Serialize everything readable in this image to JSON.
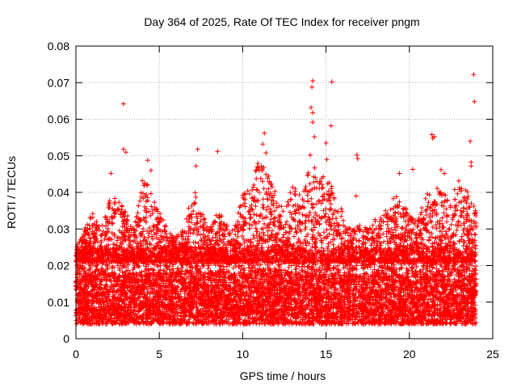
{
  "chart_data": {
    "type": "scatter",
    "title": "Day 364 of 2025, Rate Of TEC Index for receiver pngm",
    "xlabel": "GPS time / hours",
    "ylabel": "ROTI / TECUs",
    "xlim": [
      0,
      25
    ],
    "ylim": [
      0,
      0.08
    ],
    "x_ticks": [
      0,
      5,
      10,
      15,
      20,
      25
    ],
    "y_ticks": [
      0,
      0.01,
      0.02,
      0.03,
      0.04,
      0.05,
      0.06,
      0.07,
      0.08
    ],
    "x_tick_labels": [
      "0",
      "5",
      "10",
      "15",
      "20",
      "25"
    ],
    "y_tick_labels": [
      "0",
      "0.01",
      "0.02",
      "0.03",
      "0.04",
      "0.05",
      "0.06",
      "0.07",
      "0.08"
    ],
    "grid": true,
    "marker": "+",
    "marker_color": "#ff0000",
    "series": [
      {
        "name": "ROTI",
        "x_range": [
          0,
          24
        ],
        "dense_band": [
          0.004,
          0.025
        ],
        "typical": 0.012,
        "envelope": {
          "x": [
            0,
            0.5,
            1,
            1.5,
            2,
            2.5,
            3,
            3.5,
            4,
            4.5,
            5,
            5.5,
            6,
            6.5,
            7,
            7.5,
            8,
            8.5,
            9,
            9.5,
            10,
            10.5,
            11,
            11.5,
            12,
            12.5,
            13,
            13.5,
            14,
            14.5,
            15,
            15.5,
            16,
            16.5,
            17,
            17.5,
            18,
            18.5,
            19,
            19.5,
            20,
            20.5,
            21,
            21.5,
            22,
            22.5,
            23,
            23.5,
            24
          ],
          "y": [
            0.025,
            0.03,
            0.035,
            0.03,
            0.038,
            0.04,
            0.035,
            0.03,
            0.045,
            0.04,
            0.035,
            0.03,
            0.028,
            0.03,
            0.042,
            0.035,
            0.03,
            0.035,
            0.032,
            0.03,
            0.04,
            0.042,
            0.05,
            0.045,
            0.04,
            0.035,
            0.042,
            0.04,
            0.05,
            0.045,
            0.048,
            0.04,
            0.035,
            0.03,
            0.032,
            0.03,
            0.033,
            0.035,
            0.04,
            0.038,
            0.034,
            0.032,
            0.04,
            0.042,
            0.04,
            0.038,
            0.045,
            0.04,
            0.035
          ]
        },
        "peaks": [
          {
            "x": 2.85,
            "y": 0.0642
          },
          {
            "x": 2.85,
            "y": 0.0518
          },
          {
            "x": 3.0,
            "y": 0.051
          },
          {
            "x": 2.1,
            "y": 0.0452
          },
          {
            "x": 4.3,
            "y": 0.0488
          },
          {
            "x": 4.5,
            "y": 0.046
          },
          {
            "x": 7.3,
            "y": 0.0518
          },
          {
            "x": 7.2,
            "y": 0.0472
          },
          {
            "x": 8.5,
            "y": 0.0512
          },
          {
            "x": 11.3,
            "y": 0.0562
          },
          {
            "x": 11.2,
            "y": 0.0532
          },
          {
            "x": 11.4,
            "y": 0.0508
          },
          {
            "x": 14.2,
            "y": 0.0705
          },
          {
            "x": 14.15,
            "y": 0.0688
          },
          {
            "x": 14.1,
            "y": 0.0632
          },
          {
            "x": 14.2,
            "y": 0.0618
          },
          {
            "x": 14.2,
            "y": 0.0592
          },
          {
            "x": 14.05,
            "y": 0.0502
          },
          {
            "x": 14.3,
            "y": 0.0552
          },
          {
            "x": 15.35,
            "y": 0.0702
          },
          {
            "x": 15.3,
            "y": 0.0582
          },
          {
            "x": 15.0,
            "y": 0.0535
          },
          {
            "x": 15.05,
            "y": 0.049
          },
          {
            "x": 16.85,
            "y": 0.0502
          },
          {
            "x": 16.9,
            "y": 0.0492
          },
          {
            "x": 16.8,
            "y": 0.039
          },
          {
            "x": 19.4,
            "y": 0.0452
          },
          {
            "x": 20.2,
            "y": 0.0463
          },
          {
            "x": 21.35,
            "y": 0.0558
          },
          {
            "x": 21.4,
            "y": 0.0548
          },
          {
            "x": 21.5,
            "y": 0.0552
          },
          {
            "x": 21.9,
            "y": 0.0462
          },
          {
            "x": 22.1,
            "y": 0.0452
          },
          {
            "x": 23.65,
            "y": 0.054
          },
          {
            "x": 23.7,
            "y": 0.0482
          },
          {
            "x": 23.7,
            "y": 0.0472
          },
          {
            "x": 23.85,
            "y": 0.0722
          },
          {
            "x": 23.9,
            "y": 0.0648
          }
        ]
      }
    ]
  }
}
